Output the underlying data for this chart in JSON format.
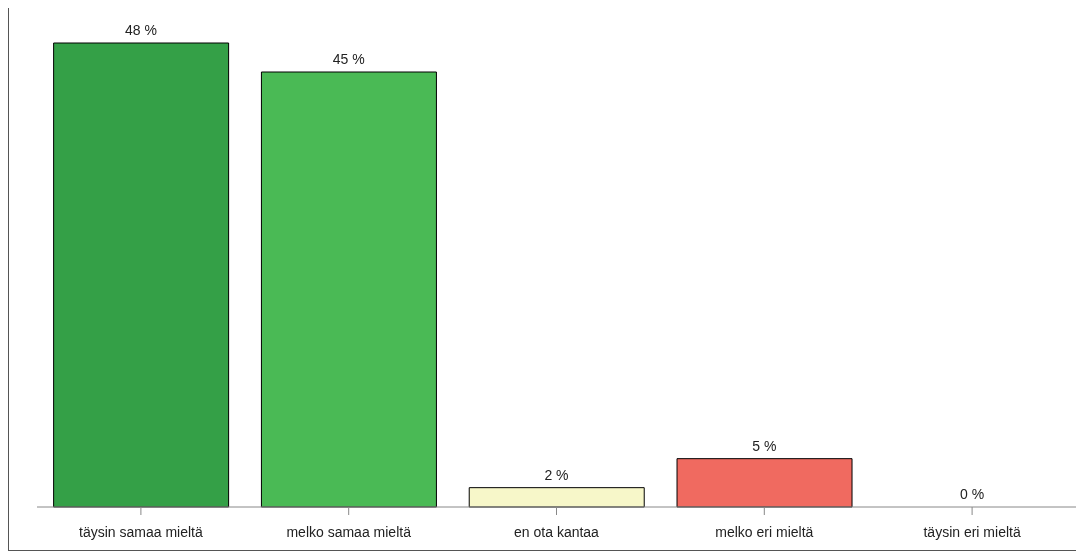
{
  "chart_data": {
    "type": "bar",
    "categories": [
      "täysin samaa mieltä",
      "melko samaa mieltä",
      "en ota kantaa",
      "melko eri mieltä",
      "täysin eri mieltä"
    ],
    "values": [
      48,
      45,
      2,
      5,
      0
    ],
    "colors": [
      "#34a047",
      "#4aba55",
      "#f7f7c9",
      "#f06a60",
      "#f06a60"
    ],
    "value_labels": [
      "48 %",
      "45 %",
      "2 %",
      "5 %",
      "0 %"
    ],
    "grid": false,
    "legend": false
  }
}
